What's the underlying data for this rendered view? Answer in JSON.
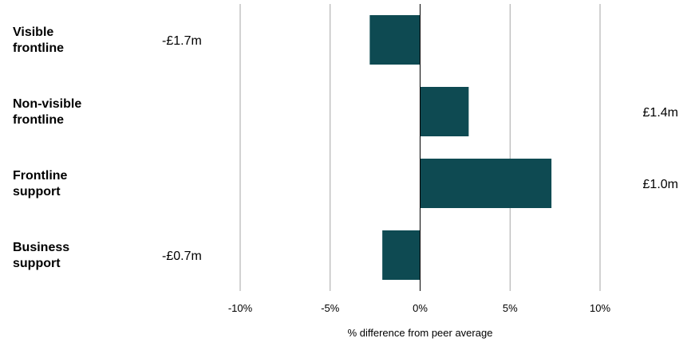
{
  "chart_data": {
    "type": "bar",
    "orientation": "horizontal",
    "categories": [
      [
        "Visible",
        "frontline"
      ],
      [
        "Non-visible",
        "frontline"
      ],
      [
        "Frontline",
        "support"
      ],
      [
        "Business",
        "support"
      ]
    ],
    "values": [
      -2.8,
      2.7,
      7.3,
      -2.1
    ],
    "data_labels": [
      "-£1.7m",
      "£1.4m",
      "£1.0m",
      "-£0.7m"
    ],
    "xlabel": "% difference from peer average",
    "xlim": [
      -10,
      10
    ],
    "xticks": [
      -10,
      -5,
      0,
      5,
      10
    ],
    "xtick_labels": [
      "-10%",
      "-5%",
      "0%",
      "5%",
      "10%"
    ],
    "grid": true,
    "legend": "none",
    "bar_color": "#0e4a52",
    "grid_color": "#a6a6a6"
  }
}
